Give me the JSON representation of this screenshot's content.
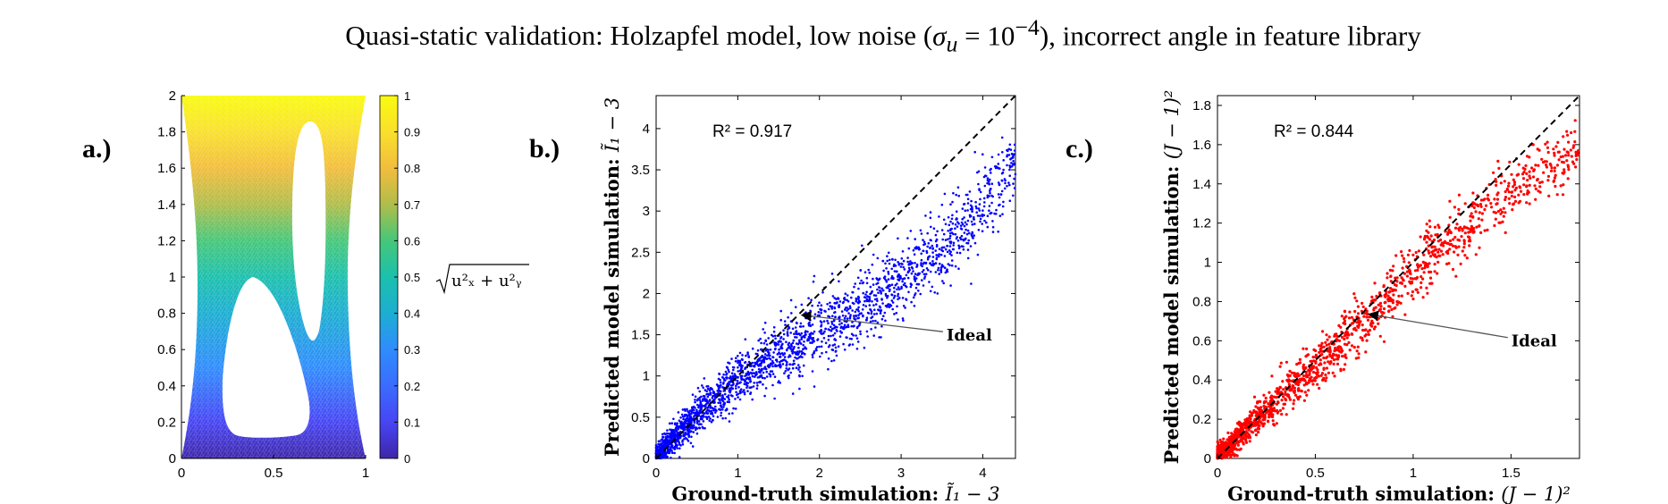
{
  "figure": {
    "title_prefix": "Quasi-static validation: Holzapfel model, low noise (",
    "title_math": "σ",
    "title_sub": "u",
    "title_eq": " = 10",
    "title_sup": "−4",
    "title_suffix": "), incorrect angle in feature library"
  },
  "panel_a": {
    "label": "a.)",
    "xlim": [
      0,
      1
    ],
    "ylim": [
      0,
      2
    ],
    "xticks": [
      "0",
      "0.5",
      "1"
    ],
    "yticks": [
      "0",
      "0.2",
      "0.4",
      "0.6",
      "0.8",
      "1",
      "1.2",
      "1.4",
      "1.6",
      "1.8",
      "2"
    ],
    "colorbar": {
      "ticks": [
        "0",
        "0.1",
        "0.2",
        "0.3",
        "0.4",
        "0.5",
        "0.6",
        "0.7",
        "0.8",
        "0.9",
        "1"
      ],
      "label_text": "u²ₓ + u²ᵧ",
      "colors": [
        "#3e26a8",
        "#4745f4",
        "#2f8cfd",
        "#1caed2",
        "#1cc0ad",
        "#45c779",
        "#b0bd4a",
        "#f2bd3c",
        "#f9e02c",
        "#f9fb0e"
      ]
    }
  },
  "chart_data": [
    {
      "type": "scatter",
      "id": "b",
      "panel_label": "b.)",
      "xlabel_text": "Ground-truth simulation: ",
      "xlabel_math": "Ĩ₁ − 3",
      "ylabel_text": "Predicted model simulation: ",
      "ylabel_math": "Ĩ₁ − 3",
      "xlim": [
        0,
        4.4
      ],
      "ylim": [
        0,
        4.4
      ],
      "xticks": [
        0,
        1,
        2,
        3,
        4
      ],
      "yticks": [
        0,
        0.5,
        1,
        1.5,
        2,
        2.5,
        3,
        3.5,
        4
      ],
      "color": "#0000ff",
      "annotation": "R² = 0.917",
      "ideal_label": "Ideal",
      "ideal_arrow_point": [
        1.75,
        1.75
      ],
      "ideal_text_at": [
        3.6,
        1.45
      ],
      "trend": [
        [
          0,
          0
        ],
        [
          0.5,
          0.55
        ],
        [
          1,
          0.95
        ],
        [
          1.5,
          1.25
        ],
        [
          2,
          1.55
        ],
        [
          2.5,
          1.82
        ],
        [
          3,
          2.15
        ],
        [
          3.5,
          2.55
        ],
        [
          4,
          3.05
        ],
        [
          4.4,
          3.6
        ]
      ],
      "spread": 0.22,
      "point_count": 2400
    },
    {
      "type": "scatter",
      "id": "c",
      "panel_label": "c.)",
      "xlabel_text": "Ground-truth simulation: ",
      "xlabel_math": "(J − 1)²",
      "ylabel_text": "Predicted model simulation: ",
      "ylabel_math": "(J − 1)²",
      "xlim": [
        0,
        1.85
      ],
      "ylim": [
        0,
        1.85
      ],
      "xticks": [
        0,
        0.5,
        1,
        1.5
      ],
      "yticks": [
        0,
        0.2,
        0.4,
        0.6,
        0.8,
        1,
        1.2,
        1.4,
        1.6,
        1.8
      ],
      "color": "#ff0000",
      "annotation": "R² = 0.844",
      "ideal_label": "Ideal",
      "ideal_arrow_point": [
        0.76,
        0.74
      ],
      "ideal_text_at": [
        1.52,
        0.58
      ],
      "trend": [
        [
          0,
          0
        ],
        [
          0.2,
          0.2
        ],
        [
          0.4,
          0.38
        ],
        [
          0.6,
          0.56
        ],
        [
          0.8,
          0.75
        ],
        [
          1.0,
          0.95
        ],
        [
          1.4,
          1.3
        ],
        [
          1.85,
          1.6
        ]
      ],
      "spread": 0.08,
      "point_count": 1700
    }
  ]
}
